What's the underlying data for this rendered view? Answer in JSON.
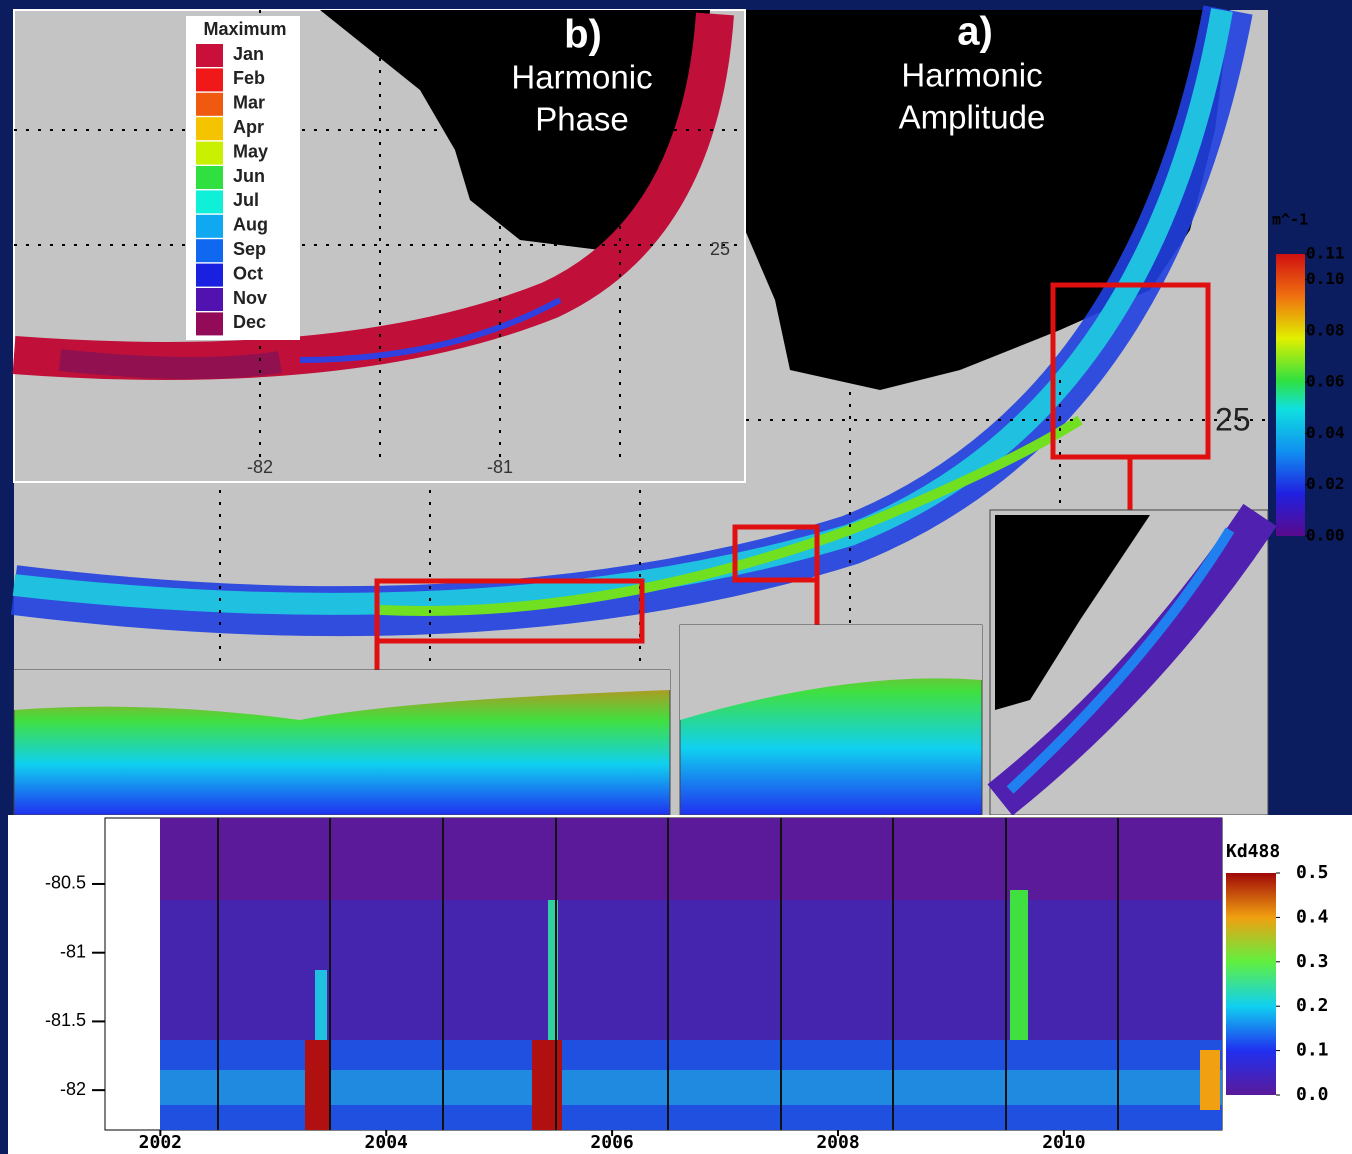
{
  "panel_b": {
    "label": "b)",
    "title": [
      "Harmonic",
      "Phase"
    ],
    "lon_labels": [
      "-82",
      "-81"
    ],
    "lat_label": "25",
    "legend": {
      "title": "Maximum",
      "items": [
        {
          "label": "Jan",
          "color": "#c8103a"
        },
        {
          "label": "Feb",
          "color": "#f01818"
        },
        {
          "label": "Mar",
          "color": "#f05a10"
        },
        {
          "label": "Apr",
          "color": "#f5c400"
        },
        {
          "label": "May",
          "color": "#c8f000"
        },
        {
          "label": "Jun",
          "color": "#30e040"
        },
        {
          "label": "Jul",
          "color": "#10f0d8"
        },
        {
          "label": "Aug",
          "color": "#10a8f0"
        },
        {
          "label": "Sep",
          "color": "#1068f0"
        },
        {
          "label": "Oct",
          "color": "#1a20e0"
        },
        {
          "label": "Nov",
          "color": "#5212b0"
        },
        {
          "label": "Dec",
          "color": "#920a58"
        }
      ]
    }
  },
  "panel_a": {
    "label": "a)",
    "title": [
      "Harmonic",
      "Amplitude"
    ],
    "lat_label": "25",
    "colorbar": {
      "unit": "m^-1",
      "lim": [
        0,
        0.11
      ],
      "ticks": [
        0.11,
        {
          "value": 0.1,
          "label": "0.10"
        },
        0.08,
        0.06,
        0.04,
        0.02,
        {
          "value": 0,
          "label": "0.00"
        }
      ]
    }
  },
  "chart_data": {
    "type": "heatmap",
    "xlim": [
      2001.51,
      2011.4
    ],
    "ylim": [
      -82.29,
      -80.02
    ],
    "xticks": [
      2002,
      2004,
      2006,
      2008,
      2010
    ],
    "yticks": [
      -80.5,
      -81,
      -81.5,
      -82
    ],
    "colorbar": {
      "title": "Kd488",
      "lim": [
        0,
        0.5
      ],
      "ticks": [
        0.5,
        0.4,
        0.3,
        0.2,
        0.1,
        {
          "value": 0,
          "label": "0.0"
        }
      ]
    }
  }
}
